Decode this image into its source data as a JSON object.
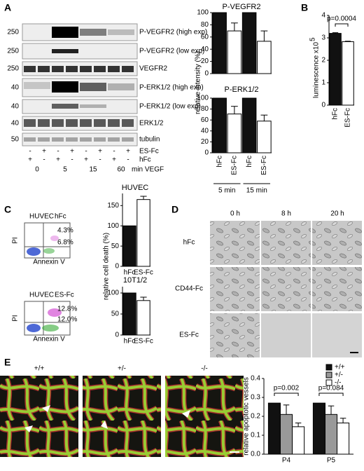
{
  "figure": {
    "panel_letters": [
      "A",
      "B",
      "C",
      "D",
      "E"
    ],
    "blot": {
      "mw": [
        "250",
        "250",
        "250",
        "40",
        "40",
        "40",
        "50"
      ],
      "rows": [
        "P-VEGFR2 (high exp)",
        "P-VEGFR2 (low exp)",
        "VEGFR2",
        "P-ERK1/2 (high exp)",
        "P-ERK1/2 (low exp)",
        "ERK1/2",
        "tubulin"
      ],
      "es_label": "ES-Fc",
      "es_signs": [
        "-",
        "+",
        "-",
        "+",
        "-",
        "+",
        "-",
        "+"
      ],
      "hfc_label": "hFc",
      "hfc_signs": [
        "+",
        "-",
        "+",
        "-",
        "+",
        "-",
        "+",
        "-"
      ],
      "times": [
        "0",
        "5",
        "15",
        "60"
      ],
      "time_label": "min VEGF"
    },
    "flow": [
      {
        "cell": "HUVEC",
        "treatment": "hFc",
        "upper_right": "4.3%",
        "lower_right": "6.8%",
        "y_label": "PI",
        "x_label": "Annexin V"
      },
      {
        "cell": "HUVEC",
        "treatment": "ES-Fc",
        "upper_right": "12.8%",
        "lower_right": "12.0%",
        "y_label": "PI",
        "x_label": "Annexin V"
      }
    ],
    "micrographs": {
      "columns": [
        "0 h",
        "8 h",
        "20 h"
      ],
      "rows": [
        "hFc",
        "CD44-Fc",
        "ES-Fc"
      ]
    },
    "retina": {
      "genotypes": [
        "+/+",
        "+/-",
        "-/-"
      ]
    }
  },
  "chart_data": [
    {
      "type": "bar",
      "title": "P-VEGFR2",
      "ylabel": "relative intensity (%)",
      "values": [
        100,
        70,
        100,
        53
      ],
      "errors": [
        null,
        13,
        null,
        17
      ],
      "colors": [
        "#111111",
        "#ffffff",
        "#111111",
        "#ffffff"
      ],
      "ylim": [
        0,
        100
      ],
      "yticks": [
        0,
        20,
        40,
        60,
        80,
        100
      ]
    },
    {
      "type": "bar",
      "title": "P-ERK1/2",
      "categories": [
        "hFc",
        "ES-Fc",
        "hFc",
        "ES-Fc"
      ],
      "group_labels": [
        "5 min",
        "15 min"
      ],
      "values": [
        100,
        71,
        100,
        58
      ],
      "errors": [
        null,
        14,
        null,
        11
      ],
      "colors": [
        "#111111",
        "#ffffff",
        "#111111",
        "#ffffff"
      ],
      "ylim": [
        0,
        100
      ],
      "yticks": [
        0,
        20,
        40,
        60,
        80,
        100
      ]
    },
    {
      "type": "bar",
      "ylabel": "luminescence x10",
      "ylabel_exponent": "5",
      "categories": [
        "hFc",
        "ES-Fc"
      ],
      "values": [
        3.2,
        2.83
      ],
      "errors": [
        0.03,
        0.02
      ],
      "colors": [
        "#111111",
        "#ffffff"
      ],
      "ylim": [
        0,
        4
      ],
      "yticks": [
        0,
        1,
        2,
        3,
        4
      ],
      "annotations": [
        "p=0.0004"
      ]
    },
    {
      "type": "bar",
      "title": "HUVEC",
      "ylabel": "relative cell death (%)",
      "categories": [
        "hFc",
        "ES-Fc"
      ],
      "values": [
        100,
        165
      ],
      "errors": [
        null,
        8
      ],
      "colors": [
        "#111111",
        "#ffffff"
      ],
      "ylim": [
        0,
        180
      ],
      "yticks": [
        0,
        50,
        100,
        150
      ]
    },
    {
      "type": "bar",
      "title": "10T1/2",
      "categories": [
        "hFc",
        "ES-Fc"
      ],
      "values": [
        100,
        82
      ],
      "errors": [
        null,
        8
      ],
      "colors": [
        "#111111",
        "#ffffff"
      ],
      "ylim": [
        0,
        115
      ],
      "yticks": [
        0,
        50,
        100
      ]
    },
    {
      "type": "bar",
      "ylabel": "relative apoptotic vessels",
      "categories": [
        "P4",
        "P5"
      ],
      "series": [
        {
          "name": "+/+",
          "color": "#111111",
          "values": [
            0.27,
            0.27
          ]
        },
        {
          "name": "+/-",
          "color": "#999999",
          "values": [
            0.21,
            0.21
          ],
          "errors": [
            0.05,
            0.045
          ]
        },
        {
          "name": "-/-",
          "color": "#ffffff",
          "values": [
            0.145,
            0.165
          ],
          "errors": [
            0.02,
            0.025
          ]
        }
      ],
      "ylim": [
        0,
        0.4
      ],
      "yticks": [
        {
          "value": 0,
          "label": "0.0"
        },
        0.1,
        0.2,
        0.3,
        0.4
      ],
      "annotations": [
        "p=0.002",
        "p=0.084"
      ]
    }
  ]
}
